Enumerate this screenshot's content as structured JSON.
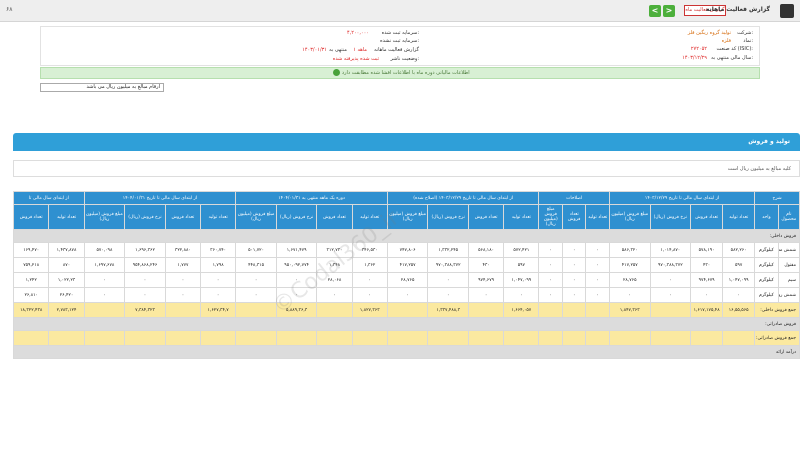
{
  "topbar": {
    "left_text": "۶۸",
    "title": "گزارش فعالیت ماهانه",
    "badge": "گزارش فعالیت ماه",
    "prev": "<",
    "next": ">"
  },
  "info": {
    "company_label": "شرکت:",
    "company_value": "تولید گروه ریگین فلز",
    "symbol_label": "نماد:",
    "symbol_value": "فلزه",
    "code_label": "کد صنعت (ISIC):",
    "code_value": "۲۷۲۰۵۲",
    "fiscal_label": "سال مالی منتهی به:",
    "fiscal_value": "۱۴۰۳/۱۲/۲۹",
    "capital_label": "سرمایه ثبت شده:",
    "capital_value": "۴,۲۰۰,۰۰۰",
    "unregistered_label": "سرمایه ثبت نشده:",
    "unregistered_value": "۰",
    "report_label": "گزارش فعالیت ماهانه",
    "month_label": "۱ ماهه",
    "period_label": "منتهی به",
    "period_value": "۱۴۰۳/۰۱/۳۱",
    "status_label": "وضعیت ناشر:",
    "status_value": "ثبت شده پذیرفته شده"
  },
  "notice": "اطلاعات مالیاتی دوره ماه با اطلاعات افشا شده مطابقت دارد",
  "filter": {
    "value": "ارقام مبالغ به میلیون ریال می باشد"
  },
  "card": {
    "title": "تولید و فروش",
    "unit_note": "کلیه مبالغ به میلیون ریال است"
  },
  "table": {
    "group_headers": [
      "شرح",
      "از ابتدای سال مالی تا تاریخ ۱۴۰۳/۱۲/۲۹",
      "اصلاحات",
      "از ابتدای سال مالی تا تاریخ ۱۴۰۳/۱۲/۲۹ (اصلاح شده)",
      "دوره یک ماهه منتهی به ۱۴۰۴/۰۱/۳۱",
      "از ابتدای سال مالی تا تاریخ ۱۴۰۴/۰۱/۳۱",
      "از ابتدای سال مالی تا"
    ],
    "col_headers": [
      "نام محصول",
      "واحد",
      "تعداد تولید",
      "تعداد فروش",
      "نرخ فروش (ریال)",
      "مبلغ فروش (میلیون ریال)",
      "تعداد تولید",
      "تعداد فروش",
      "مبلغ فروش (میلیون ریال)",
      "تعداد تولید",
      "تعداد فروش",
      "نرخ فروش (ریال)",
      "مبلغ فروش (میلیون ریال)",
      "تعداد تولید",
      "تعداد فروش",
      "نرخ فروش (ریال)",
      "مبلغ فروش (میلیون ریال)",
      "تعداد تولید",
      "تعداد فروش",
      "نرخ فروش (ریال)",
      "مبلغ فروش (میلیون ریال)",
      "تعداد تولید",
      "تعداد فروش"
    ],
    "section1": "فروش داخلی:",
    "rows": [
      {
        "name": "شمش مس",
        "unit": "کیلوگرم",
        "cells": [
          "۵۸۲,۲۶۰",
          "۵۷۸,۱۹۰",
          "۱,۰۱۴,۸۷۰",
          "۵۸۶,۳۲۰",
          "۰",
          "۰",
          "۰",
          "۵۷۲,۴۲۱",
          "۵۶۸,۱۸۰",
          "۱,۳۳۲,۲۴۵",
          "۷۴۷,۸۰۶",
          "۳۴۶,۵۳۰",
          "۳۱۲,۷۳۰",
          "۱,۶۷۱,۴۷۹",
          "۵۰۱,۷۲۰",
          "۳۶۰,۷۴۰",
          "۳۲۲,۸۸۰",
          "۱,۶۹۶,۳۶۲",
          "۵۷۰,۰۹۸",
          "۱,۴۳۷,۸۷۸",
          "۱۶۹,۴۷۰"
        ]
      },
      {
        "name": "مفتول",
        "unit": "کیلوگرم",
        "cells": [
          "۵۹۷",
          "۴۳۰",
          "۹۷۰,۳۸۸,۳۷۲",
          "۴۱۷,۲۵۷",
          "۰",
          "۰",
          "۰",
          "۵۹۷",
          "۴۳۰",
          "۹۷۰,۳۸۸,۳۷۲",
          "۴۱۷,۲۵۷",
          "۱,۳۶۲",
          "۱,۳۴۸",
          "۹۵۰,۰۹۲,۷۷۴",
          "۴۴۸,۳۱۵",
          "۱,۷۹۸",
          "۱,۷۷۷",
          "۹۵۴,۸۶۸,۲۴۶",
          "۱,۶۹۷,۶۷۸",
          "۸۷۰",
          "۷۵۹,۲۱۸"
        ]
      },
      {
        "name": "سیم",
        "unit": "کیلوگرم",
        "cells": [
          "۱,۰۴۷,۰۹۹",
          "۹۷۴,۶۷۹",
          "۰",
          "۲۸,۷۶۵",
          "۰",
          "۰",
          "۰",
          "۱,۰۴۷,۰۹۹",
          "۹۷۴,۶۷۹",
          "۰",
          "۲۸,۷۶۵",
          "۰",
          "۲۸,۰۶۸",
          "۰",
          "۰",
          "۰",
          "۰",
          "۰",
          "۰",
          "۱,۰۲۲,۲۳",
          "۱,۲۴۲"
        ]
      },
      {
        "name": "شمش روی",
        "unit": "کیلوگرم",
        "cells": [
          "۰",
          "۰",
          "۰",
          "۰",
          "۰",
          "۰",
          "۰",
          "۰",
          "۰",
          "۰",
          "۰",
          "۰",
          "۰",
          "۰",
          "۰",
          "۰",
          "۰",
          "۰",
          "۰",
          "۲۶,۴۲۰",
          "۲۶,۸۱۰"
        ]
      }
    ],
    "sum1_label": "جمع فروش داخلی:",
    "sum1_cells": [
      "۱۶,۵۵,۵۶۵",
      "۱,۶۱۷,۱۷۵,۴۸",
      "",
      "۱,۸۴۷,۳۶۳",
      "",
      "",
      "",
      "۱,۶۶۴,۰۵۷",
      "",
      "۱,۳۳۷,۴۸۸,۳",
      "",
      "۱,۸۲۷,۳۶۳",
      "",
      "۵,۸۸۹,۳۶,۳",
      "",
      "۱,۶۲۷,۳۴,۷",
      "",
      "۷,۳۸۴,۳۲۳",
      "",
      "۲,۷۸۳,۱۲۴",
      "۱۸,۳۲۲,۴۳۸"
    ],
    "section2": "فروش صادراتی:",
    "sum2_label": "جمع فروش صادراتی:",
    "sum2_cells": [
      "",
      "",
      "",
      "",
      "",
      "",
      "",
      "",
      "",
      "",
      "",
      "",
      "",
      "",
      "",
      "",
      "",
      "",
      "",
      "",
      ""
    ],
    "section3": "درآمد ارائه"
  }
}
